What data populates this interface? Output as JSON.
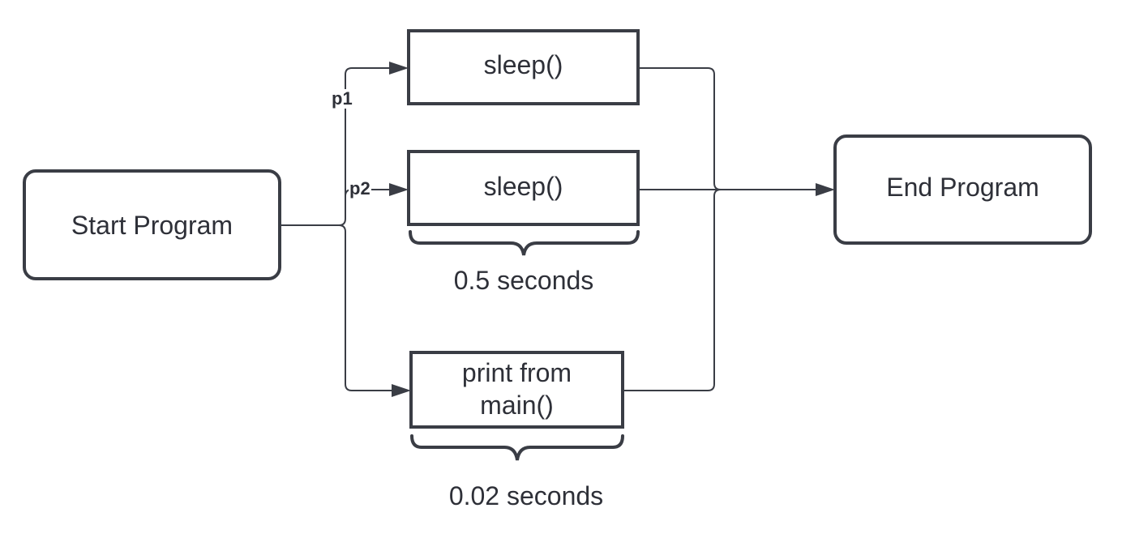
{
  "nodes": {
    "start": {
      "label": "Start Program"
    },
    "sleep_p1": {
      "label": "sleep()"
    },
    "sleep_p2": {
      "label": "sleep()"
    },
    "print_main": {
      "label": "print from main()"
    },
    "end": {
      "label": "End Program"
    }
  },
  "edges": {
    "p1": {
      "label": "p1"
    },
    "p2": {
      "label": "p2"
    }
  },
  "durations": {
    "sleep": "0.5 seconds",
    "print": "0.02 seconds"
  },
  "colors": {
    "stroke": "#3a3d45",
    "text": "#2e3038",
    "background": "#ffffff"
  }
}
